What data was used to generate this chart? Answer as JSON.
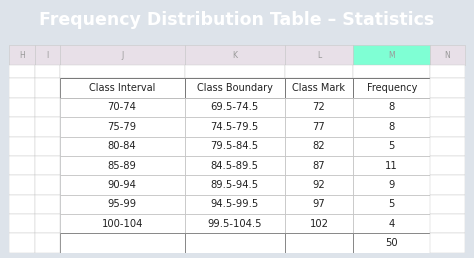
{
  "title": "Frequency Distribution Table – Statistics",
  "title_bg": "#1b3a52",
  "title_color": "#ffffff",
  "outer_bg": "#dde3ea",
  "sheet_bg": "#f0f0f0",
  "col_letters": [
    "H",
    "I",
    "J",
    "K",
    "L",
    "M",
    "N"
  ],
  "highlighted_col": "M",
  "highlighted_col_color": "#7fffd4",
  "col_header_bg": "#e8e0e8",
  "col_header_text": "#999999",
  "table_headers": [
    "Class Interval",
    "Class Boundary",
    "Class Mark",
    "Frequency"
  ],
  "rows": [
    [
      "70-74",
      "69.5-74.5",
      "72",
      "8"
    ],
    [
      "75-79",
      "74.5-79.5",
      "77",
      "8"
    ],
    [
      "80-84",
      "79.5-84.5",
      "82",
      "5"
    ],
    [
      "85-89",
      "84.5-89.5",
      "87",
      "11"
    ],
    [
      "90-94",
      "89.5-94.5",
      "92",
      "9"
    ],
    [
      "95-99",
      "94.5-99.5",
      "97",
      "5"
    ],
    [
      "100-104",
      "99.5-104.5",
      "102",
      "4"
    ]
  ],
  "total": "50",
  "cell_bg": "#ffffff",
  "cell_border": "#c0c0c0",
  "text_color": "#222222",
  "grid_line_color": "#c8c8c8",
  "title_fontsize": 12.5,
  "data_fontsize": 7.2,
  "header_fontsize": 7.0
}
